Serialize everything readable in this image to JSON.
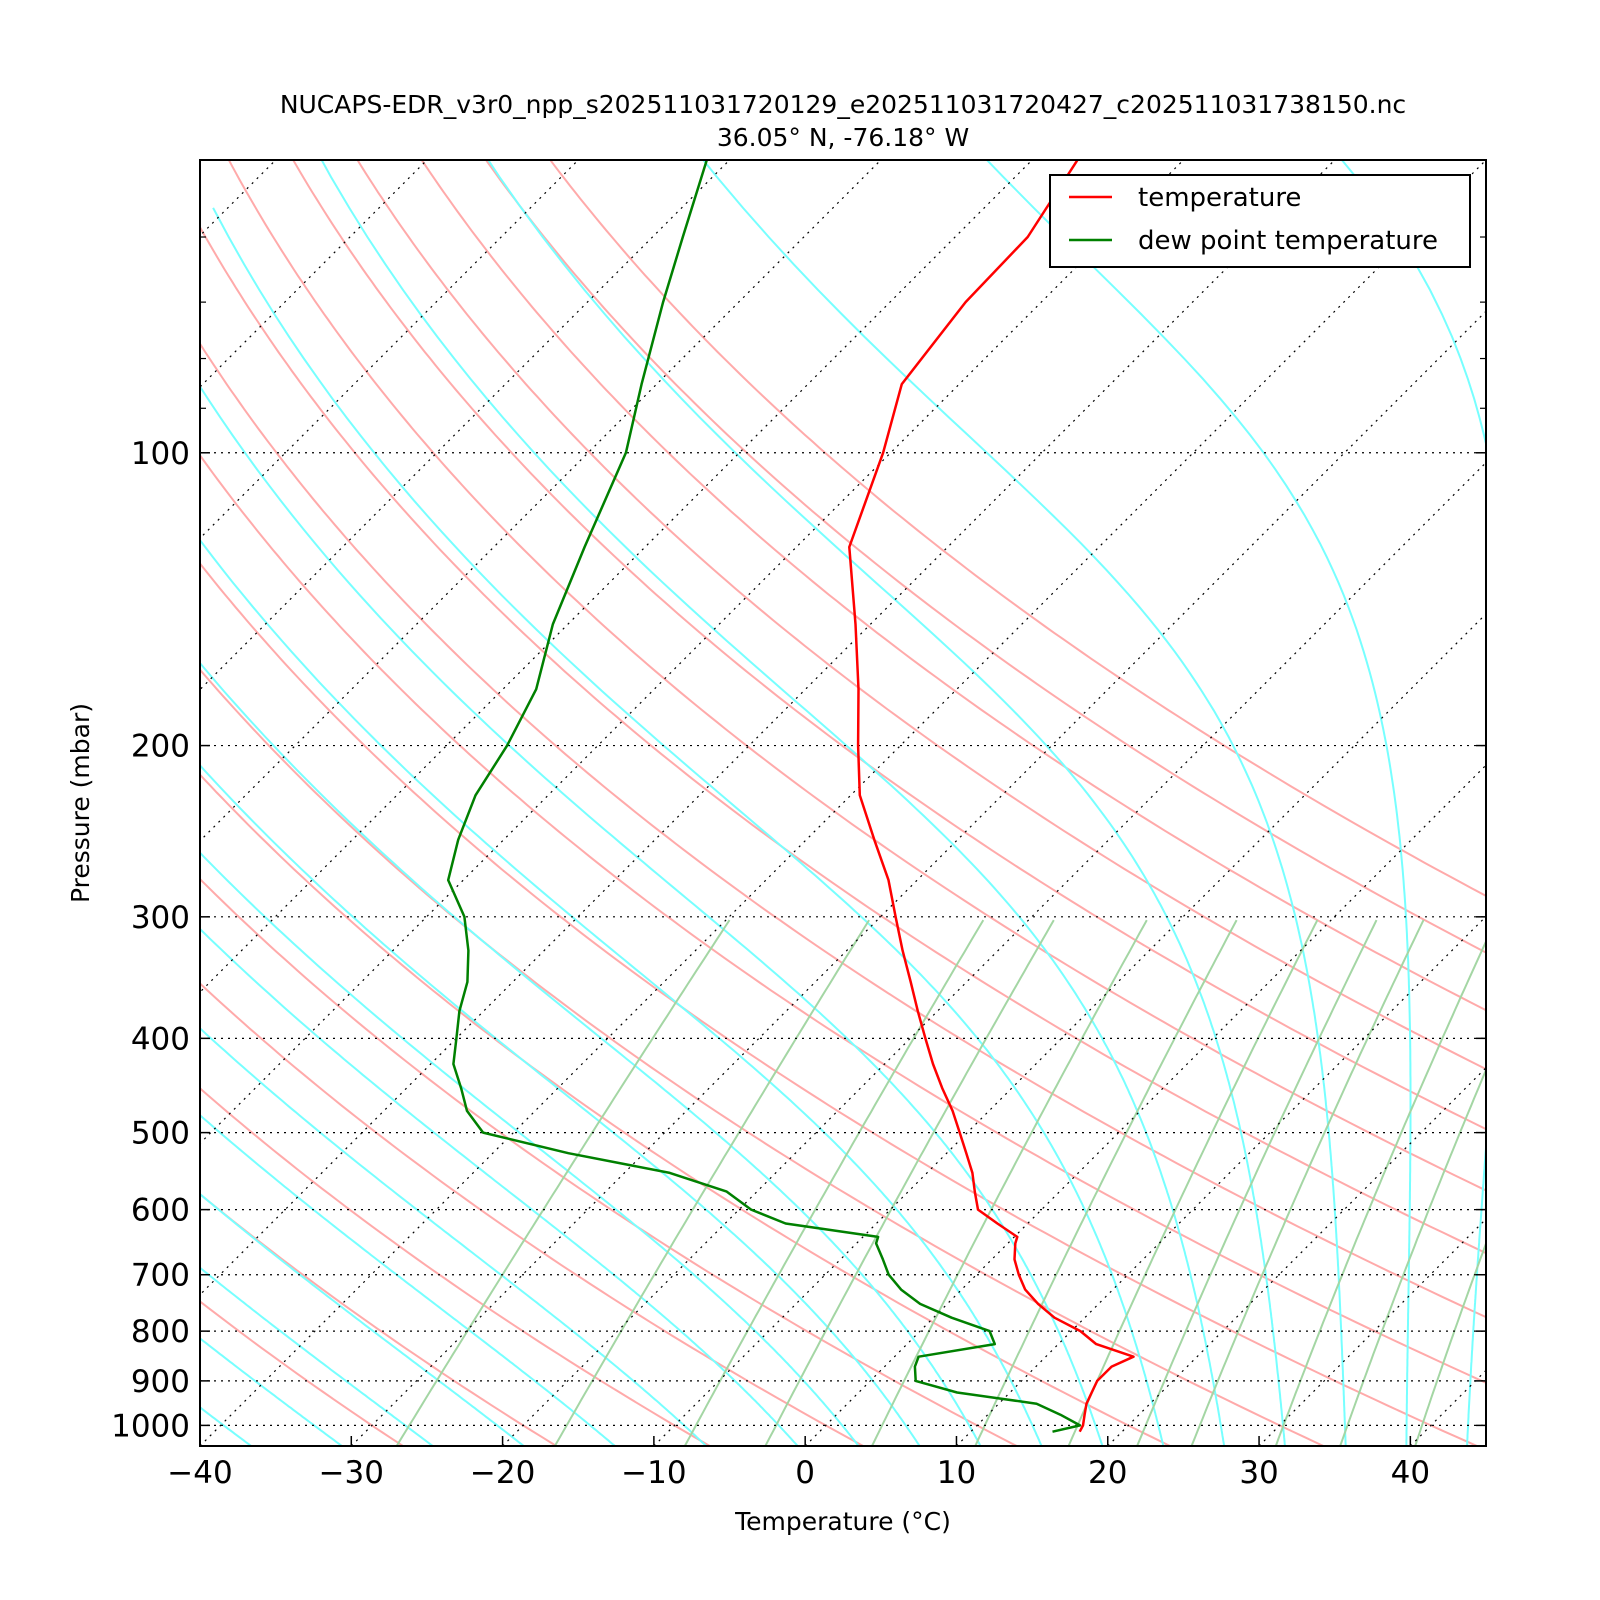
{
  "chart_data": {
    "type": "line",
    "title": "NUCAPS-EDR_v3r0_npp_s202511031720129_e202511031720427_c202511031738150.nc",
    "subtitle": "36.05° N, -76.18° W",
    "xlabel": "Temperature (°C)",
    "ylabel": "Pressure (mbar)",
    "xlim": [
      -40,
      45
    ],
    "ylim": [
      1050,
      50
    ],
    "y_scale": "log",
    "skew": true,
    "grid": true,
    "legend": "top-right",
    "x_ticks": [
      -40,
      -30,
      -20,
      -10,
      0,
      10,
      20,
      30,
      40
    ],
    "x_tick_labels": [
      "−40",
      "−30",
      "−20",
      "−10",
      "0",
      "10",
      "20",
      "30",
      "40"
    ],
    "y_ticks": [
      100,
      200,
      300,
      400,
      500,
      600,
      700,
      800,
      900,
      1000
    ],
    "y_tick_labels": [
      "100",
      "200",
      "300",
      "400",
      "500",
      "600",
      "700",
      "800",
      "900",
      "1000"
    ],
    "background_lines": {
      "dry_adiabat_color": "#ffaaaa",
      "moist_adiabat_color": "#77ffff",
      "mixing_ratio_color": "#a4d6a4",
      "isotherm_color": "#000000"
    },
    "series": [
      {
        "name": "temperature",
        "color": "#ff0000",
        "points": [
          {
            "p": 1015,
            "t": 17.2
          },
          {
            "p": 1000,
            "t": 17.0
          },
          {
            "p": 975,
            "t": 16.4
          },
          {
            "p": 950,
            "t": 15.8
          },
          {
            "p": 925,
            "t": 15.4
          },
          {
            "p": 900,
            "t": 15.0
          },
          {
            "p": 870,
            "t": 15.0
          },
          {
            "p": 850,
            "t": 15.8
          },
          {
            "p": 825,
            "t": 12.5
          },
          {
            "p": 800,
            "t": 10.6
          },
          {
            "p": 775,
            "t": 8.0
          },
          {
            "p": 750,
            "t": 6.0
          },
          {
            "p": 725,
            "t": 4.2
          },
          {
            "p": 700,
            "t": 2.8
          },
          {
            "p": 675,
            "t": 1.5
          },
          {
            "p": 650,
            "t": 0.5
          },
          {
            "p": 640,
            "t": 0.2
          },
          {
            "p": 620,
            "t": -2.0
          },
          {
            "p": 600,
            "t": -4.2
          },
          {
            "p": 575,
            "t": -5.6
          },
          {
            "p": 550,
            "t": -7.0
          },
          {
            "p": 525,
            "t": -8.7
          },
          {
            "p": 500,
            "t": -10.5
          },
          {
            "p": 475,
            "t": -12.4
          },
          {
            "p": 450,
            "t": -14.6
          },
          {
            "p": 425,
            "t": -16.8
          },
          {
            "p": 400,
            "t": -19.0
          },
          {
            "p": 375,
            "t": -21.3
          },
          {
            "p": 350,
            "t": -23.7
          },
          {
            "p": 325,
            "t": -26.3
          },
          {
            "p": 300,
            "t": -29.0
          },
          {
            "p": 275,
            "t": -31.9
          },
          {
            "p": 250,
            "t": -35.5
          },
          {
            "p": 225,
            "t": -39.4
          },
          {
            "p": 200,
            "t": -42.8
          },
          {
            "p": 175,
            "t": -46.5
          },
          {
            "p": 150,
            "t": -51.0
          },
          {
            "p": 125,
            "t": -56.5
          },
          {
            "p": 100,
            "t": -60.5
          },
          {
            "p": 85,
            "t": -63.8
          },
          {
            "p": 70,
            "t": -65.0
          },
          {
            "p": 60,
            "t": -65.2
          },
          {
            "p": 50,
            "t": -67.0
          }
        ]
      },
      {
        "name": "dew point temperature",
        "color": "#008000",
        "points": [
          {
            "p": 1015,
            "t": 15.4
          },
          {
            "p": 1000,
            "t": 16.8
          },
          {
            "p": 975,
            "t": 14.8
          },
          {
            "p": 950,
            "t": 12.5
          },
          {
            "p": 925,
            "t": 6.5
          },
          {
            "p": 900,
            "t": 3.0
          },
          {
            "p": 870,
            "t": 2.0
          },
          {
            "p": 850,
            "t": 1.6
          },
          {
            "p": 825,
            "t": 5.8
          },
          {
            "p": 800,
            "t": 4.6
          },
          {
            "p": 775,
            "t": 1.2
          },
          {
            "p": 750,
            "t": -1.8
          },
          {
            "p": 725,
            "t": -4.0
          },
          {
            "p": 700,
            "t": -5.8
          },
          {
            "p": 675,
            "t": -7.2
          },
          {
            "p": 650,
            "t": -8.7
          },
          {
            "p": 640,
            "t": -9.0
          },
          {
            "p": 620,
            "t": -16.0
          },
          {
            "p": 600,
            "t": -19.2
          },
          {
            "p": 575,
            "t": -22.0
          },
          {
            "p": 550,
            "t": -27.0
          },
          {
            "p": 525,
            "t": -35.0
          },
          {
            "p": 500,
            "t": -42.0
          },
          {
            "p": 475,
            "t": -44.5
          },
          {
            "p": 450,
            "t": -46.4
          },
          {
            "p": 425,
            "t": -48.5
          },
          {
            "p": 400,
            "t": -50.0
          },
          {
            "p": 375,
            "t": -51.6
          },
          {
            "p": 350,
            "t": -53.0
          },
          {
            "p": 325,
            "t": -55.0
          },
          {
            "p": 300,
            "t": -57.5
          },
          {
            "p": 275,
            "t": -61.0
          },
          {
            "p": 250,
            "t": -63.0
          },
          {
            "p": 225,
            "t": -64.8
          },
          {
            "p": 200,
            "t": -66.0
          },
          {
            "p": 175,
            "t": -67.8
          },
          {
            "p": 150,
            "t": -71.0
          },
          {
            "p": 125,
            "t": -74.0
          },
          {
            "p": 100,
            "t": -77.5
          },
          {
            "p": 85,
            "t": -81.0
          },
          {
            "p": 70,
            "t": -85.0
          },
          {
            "p": 60,
            "t": -88.0
          },
          {
            "p": 50,
            "t": -91.5
          }
        ]
      }
    ]
  }
}
